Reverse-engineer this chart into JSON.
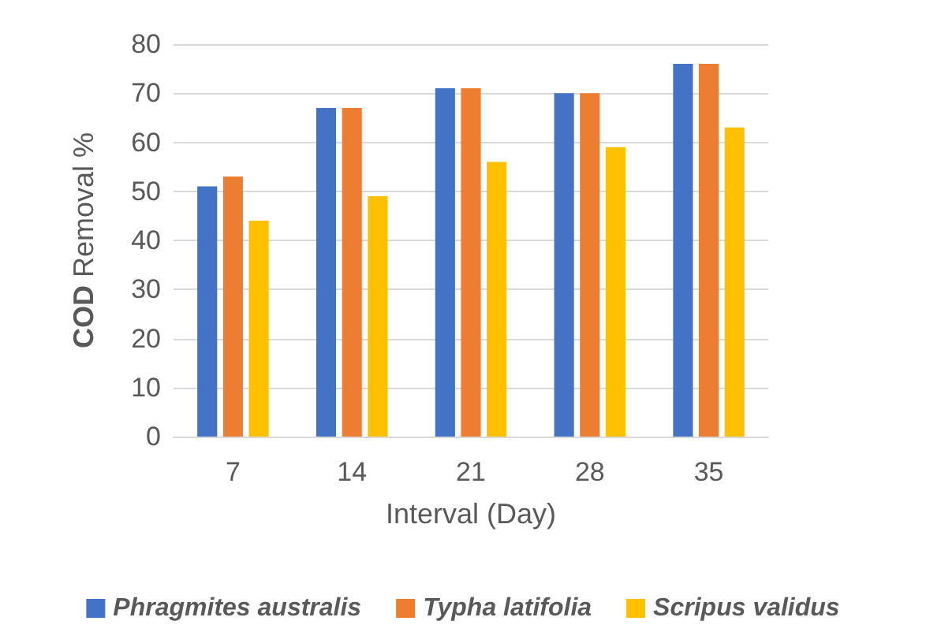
{
  "chart_data": {
    "type": "bar",
    "xlabel": "Interval (Day)",
    "ylabel": "COD Removal %",
    "categories": [
      "7",
      "14",
      "21",
      "28",
      "35"
    ],
    "series": [
      {
        "name": "Phragmites australis",
        "color": "#4472c4",
        "values": [
          51,
          67,
          71,
          70,
          76
        ]
      },
      {
        "name": "Typha latifolia",
        "color": "#ed7d31",
        "values": [
          53,
          67,
          71,
          70,
          76
        ]
      },
      {
        "name": "Scripus validus",
        "color": "#ffc000",
        "values": [
          44,
          49,
          56,
          59,
          63
        ]
      }
    ],
    "ylim": [
      0,
      80
    ],
    "yticks": [
      0,
      10,
      20,
      30,
      40,
      50,
      60,
      70,
      80
    ],
    "grid": "y",
    "legend": "bottom"
  }
}
